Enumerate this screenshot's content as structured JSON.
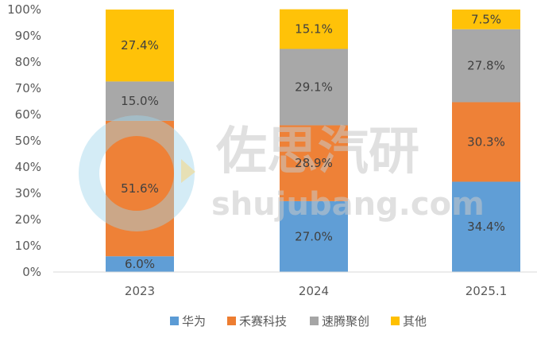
{
  "chart_data": {
    "type": "bar",
    "stacked": true,
    "categories": [
      "2023",
      "2024",
      "2025.1"
    ],
    "series": [
      {
        "name": "华为",
        "values": [
          6.0,
          27.0,
          34.4
        ],
        "labels": [
          "6.0%",
          "27.0%",
          "34.4%"
        ],
        "color": "#5B9BD5"
      },
      {
        "name": "禾赛科技",
        "values": [
          51.6,
          28.9,
          30.3
        ],
        "labels": [
          "51.6%",
          "28.9%",
          "30.3%"
        ],
        "color": "#ED7D31"
      },
      {
        "name": "速腾聚创",
        "values": [
          15.0,
          29.1,
          27.8
        ],
        "labels": [
          "15.0%",
          "29.1%",
          "27.8%"
        ],
        "color": "#A5A5A5"
      },
      {
        "name": "其他",
        "values": [
          27.4,
          15.1,
          7.5
        ],
        "labels": [
          "27.4%",
          "15.1%",
          "7.5%"
        ],
        "color": "#FFC000"
      }
    ],
    "ylim": [
      0,
      100
    ],
    "y_ticks": [
      "0%",
      "10%",
      "20%",
      "30%",
      "40%",
      "50%",
      "60%",
      "70%",
      "80%",
      "90%",
      "100%"
    ],
    "grid": false,
    "legend_position": "bottom"
  },
  "watermark": {
    "title": "佐思汽研",
    "url": "shujubang.com"
  }
}
